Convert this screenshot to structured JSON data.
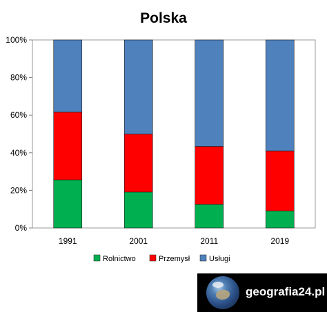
{
  "chart_data": {
    "type": "bar",
    "stacked": true,
    "title": "Polska",
    "categories": [
      "1991",
      "2001",
      "2011",
      "2019"
    ],
    "series": [
      {
        "name": "Rolnictwo",
        "color": "#00b050",
        "values": [
          25.6,
          19.1,
          12.6,
          9.1
        ]
      },
      {
        "name": "Przemysł",
        "color": "#ff0000",
        "values": [
          36.0,
          30.8,
          30.8,
          31.9
        ]
      },
      {
        "name": "Usługi",
        "color": "#4f81bd",
        "values": [
          38.4,
          50.1,
          56.6,
          59.0
        ]
      }
    ],
    "ylim": [
      0,
      100
    ],
    "yticks": [
      "0%",
      "20%",
      "40%",
      "60%",
      "80%",
      "100%"
    ],
    "grid": false,
    "legend_position": "bottom"
  },
  "branding": {
    "logo_text": "geografia24.pl",
    "logo_icon": "globe-icon"
  }
}
